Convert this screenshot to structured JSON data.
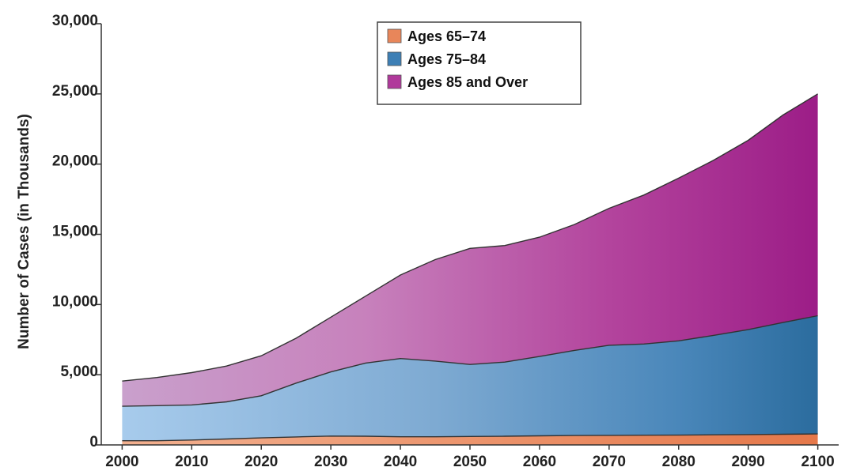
{
  "chart_data": {
    "type": "area",
    "stacked": true,
    "title": "",
    "xlabel": "",
    "ylabel": "Number of Cases (in Thousands)",
    "x": [
      2000,
      2005,
      2010,
      2015,
      2020,
      2025,
      2030,
      2035,
      2040,
      2045,
      2050,
      2055,
      2060,
      2065,
      2070,
      2075,
      2080,
      2085,
      2090,
      2095,
      2100
    ],
    "xlim": [
      1997,
      2103
    ],
    "ylim": [
      0,
      30000
    ],
    "x_ticks": [
      "2000",
      "2010",
      "2020",
      "2030",
      "2040",
      "2050",
      "2060",
      "2070",
      "2080",
      "2090",
      "2100"
    ],
    "y_ticks": [
      "0",
      "5,000",
      "10,000",
      "15,000",
      "20,000",
      "25,000",
      "30,000"
    ],
    "y_tick_values": [
      0,
      5000,
      10000,
      15000,
      20000,
      25000,
      30000
    ],
    "grid": false,
    "legend_position": "top-center",
    "series": [
      {
        "name": "Ages 65–74",
        "color": "#e8865a",
        "values": [
          300,
          300,
          350,
          420,
          500,
          570,
          630,
          620,
          580,
          580,
          600,
          620,
          650,
          670,
          680,
          690,
          700,
          720,
          740,
          760,
          780
        ]
      },
      {
        "name": "Ages 75–84",
        "color": "#3d7fb5",
        "values": [
          2450,
          2500,
          2500,
          2650,
          3000,
          3830,
          4570,
          5210,
          5570,
          5390,
          5130,
          5280,
          5650,
          6060,
          6420,
          6500,
          6710,
          7080,
          7470,
          7960,
          8420
        ]
      },
      {
        "name": "Ages 85 and Over",
        "color": "#b0399b",
        "values": [
          1800,
          2000,
          2300,
          2550,
          2850,
          3200,
          3900,
          4770,
          5950,
          7230,
          8270,
          8300,
          8500,
          8970,
          9750,
          10610,
          11590,
          12470,
          13490,
          14780,
          15800
        ]
      }
    ]
  }
}
